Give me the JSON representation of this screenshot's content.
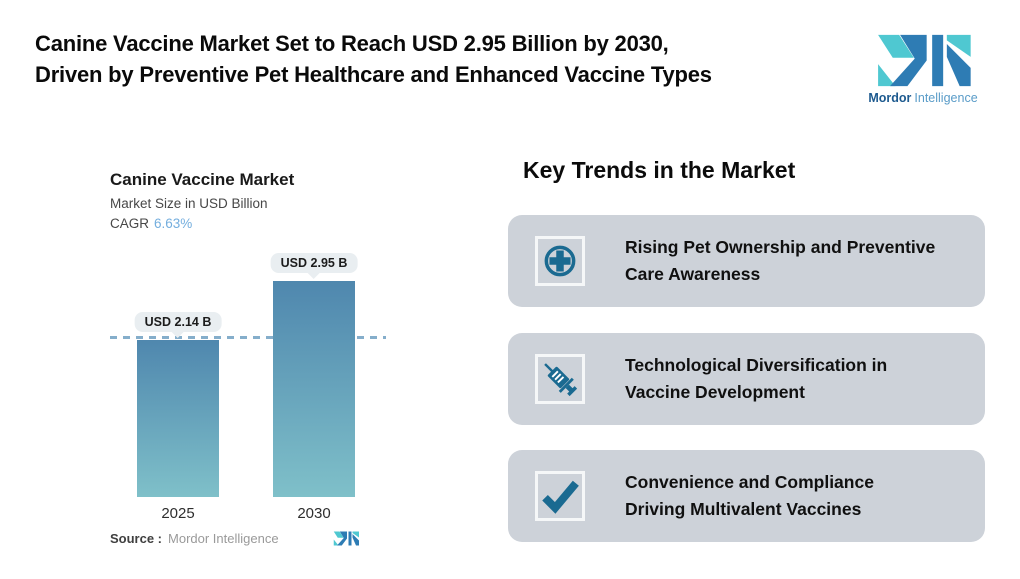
{
  "header": {
    "title_line1": "Canine Vaccine Market Set to Reach USD 2.95 Billion by 2030,",
    "title_line2": "Driven by Preventive Pet Healthcare and Enhanced Vaccine Types"
  },
  "brand": {
    "name_bold": "Mordor",
    "name_light": "Intelligence"
  },
  "chart": {
    "title": "Canine Vaccine Market",
    "subtitle": "Market Size in USD Billion",
    "cagr_label": "CAGR",
    "cagr_value": "6.63%",
    "source_label": "Source :",
    "source_value": "Mordor Intelligence",
    "bars": [
      {
        "year": "2025",
        "value_label": "USD 2.14 B"
      },
      {
        "year": "2030",
        "value_label": "USD 2.95 B"
      }
    ]
  },
  "chart_data": {
    "type": "bar",
    "title": "Canine Vaccine Market",
    "ylabel": "Market Size in USD Billion",
    "cagr_percent": 6.63,
    "categories": [
      "2025",
      "2030"
    ],
    "values": [
      2.14,
      2.95
    ],
    "value_labels": [
      "USD 2.14 B",
      "USD 2.95 B"
    ],
    "unit": "USD Billion",
    "reference_line": 2.14,
    "ylim": [
      0,
      3.35
    ],
    "grid": false,
    "legend": false,
    "source": "Mordor Intelligence"
  },
  "trends": {
    "heading": "Key Trends in the Market",
    "items": [
      {
        "icon": "medical-cross-circle",
        "line1": "Rising Pet Ownership and Preventive",
        "line2": "Care Awareness"
      },
      {
        "icon": "syringe",
        "line1": "Technological Diversification in",
        "line2": "Vaccine Development"
      },
      {
        "icon": "checkmark",
        "line1": "Convenience and Compliance",
        "line2": "Driving Multivalent Vaccines"
      }
    ]
  },
  "colors": {
    "brand_blue": "#2e7cb4",
    "brand_teal": "#4fc8d1",
    "brand_text_dark": "#1d5a8f",
    "brand_text_light": "#5a9cc8",
    "icon_blue": "#1a6a91",
    "card_bg": "#cdd2d9",
    "bar_gradient_top": "#4f87ae",
    "bar_gradient_bottom": "#7fc0c9",
    "dashed_line": "#85aecb",
    "cagr_value_color": "#74aede",
    "value_pill_bg": "#e9eef1"
  }
}
